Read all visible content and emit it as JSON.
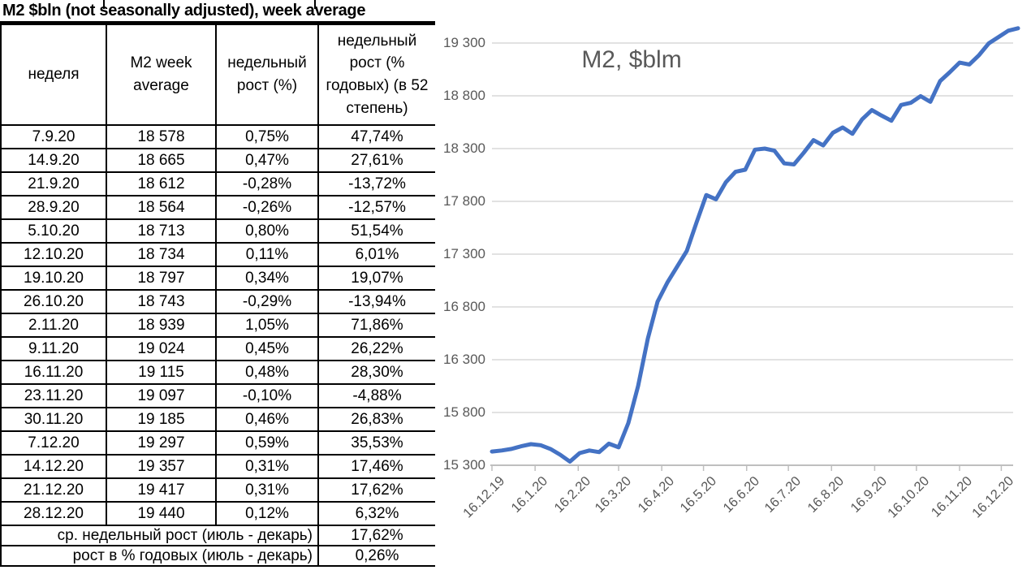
{
  "table": {
    "title": "M2 $bln (not seasonally adjusted), week average",
    "columns": [
      "неделя",
      "M2 week average",
      "недельный рост (%)",
      "недельный рост (% годовых) (в 52 степень)"
    ],
    "rows": [
      [
        "7.9.20",
        "18 578",
        "0,75%",
        "47,74%"
      ],
      [
        "14.9.20",
        "18 665",
        "0,47%",
        "27,61%"
      ],
      [
        "21.9.20",
        "18 612",
        "-0,28%",
        "-13,72%"
      ],
      [
        "28.9.20",
        "18 564",
        "-0,26%",
        "-12,57%"
      ],
      [
        "5.10.20",
        "18 713",
        "0,80%",
        "51,54%"
      ],
      [
        "12.10.20",
        "18 734",
        "0,11%",
        "6,01%"
      ],
      [
        "19.10.20",
        "18 797",
        "0,34%",
        "19,07%"
      ],
      [
        "26.10.20",
        "18 743",
        "-0,29%",
        "-13,94%"
      ],
      [
        "2.11.20",
        "18 939",
        "1,05%",
        "71,86%"
      ],
      [
        "9.11.20",
        "19 024",
        "0,45%",
        "26,22%"
      ],
      [
        "16.11.20",
        "19 115",
        "0,48%",
        "28,30%"
      ],
      [
        "23.11.20",
        "19 097",
        "-0,10%",
        "-4,88%"
      ],
      [
        "30.11.20",
        "19 185",
        "0,46%",
        "26,83%"
      ],
      [
        "7.12.20",
        "19 297",
        "0,59%",
        "35,53%"
      ],
      [
        "14.12.20",
        "19 357",
        "0,31%",
        "17,46%"
      ],
      [
        "21.12.20",
        "19 417",
        "0,31%",
        "17,62%"
      ],
      [
        "28.12.20",
        "19 440",
        "0,12%",
        "6,32%"
      ]
    ],
    "summary_rows": [
      {
        "label": "ср. недельный рост (июль - декарь)",
        "value": "17,62%"
      },
      {
        "label": "рост в % годовых (июль - декарь)",
        "value": "0,26%"
      }
    ]
  },
  "chart": {
    "title": "M2, $blm",
    "line_color": "#4472C4",
    "gridline_color": "#D9D9D9",
    "axis_color": "#BFBFBF",
    "label_color": "#595959",
    "y_tick_labels": [
      "15 300",
      "15 800",
      "16 300",
      "16 800",
      "17 300",
      "17 800",
      "18 300",
      "18 800",
      "19 300"
    ],
    "x_tick_labels": [
      "16.12.19",
      "16.1.20",
      "16.2.20",
      "16.3.20",
      "16.4.20",
      "16.5.20",
      "16.6.20",
      "16.7.20",
      "16.8.20",
      "16.9.20",
      "16.10.20",
      "16.11.20",
      "16.12.20"
    ]
  },
  "chart_data": {
    "type": "line",
    "title": "M2, $blm",
    "x": [
      "16.12.19",
      "23.12.19",
      "30.12.19",
      "6.1.20",
      "13.1.20",
      "20.1.20",
      "27.1.20",
      "3.2.20",
      "10.2.20",
      "17.2.20",
      "24.2.20",
      "2.3.20",
      "9.3.20",
      "16.3.20",
      "23.3.20",
      "30.3.20",
      "6.4.20",
      "13.4.20",
      "20.4.20",
      "27.4.20",
      "4.5.20",
      "11.5.20",
      "18.5.20",
      "25.5.20",
      "1.6.20",
      "8.6.20",
      "15.6.20",
      "22.6.20",
      "29.6.20",
      "6.7.20",
      "13.7.20",
      "20.7.20",
      "27.7.20",
      "3.8.20",
      "10.8.20",
      "17.8.20",
      "24.8.20",
      "31.8.20",
      "7.9.20",
      "14.9.20",
      "21.9.20",
      "28.9.20",
      "5.10.20",
      "12.10.20",
      "19.10.20",
      "26.10.20",
      "2.11.20",
      "9.11.20",
      "16.11.20",
      "23.11.20",
      "30.11.20",
      "7.12.20",
      "14.12.20",
      "21.12.20",
      "28.12.20"
    ],
    "values": [
      15430,
      15440,
      15455,
      15480,
      15500,
      15490,
      15455,
      15400,
      15335,
      15415,
      15440,
      15425,
      15505,
      15470,
      15700,
      16050,
      16500,
      16850,
      17030,
      17180,
      17330,
      17600,
      17860,
      17820,
      17980,
      18080,
      18100,
      18290,
      18300,
      18280,
      18160,
      18150,
      18260,
      18380,
      18330,
      18450,
      18500,
      18440,
      18578,
      18665,
      18612,
      18564,
      18713,
      18734,
      18797,
      18743,
      18939,
      19024,
      19115,
      19097,
      19185,
      19297,
      19357,
      19417,
      19440
    ],
    "xlabel": "",
    "ylabel": "",
    "ylim": [
      15300,
      19560
    ],
    "y_tick_step": 500,
    "x_axis_tick_labels": [
      "16.12.19",
      "16.1.20",
      "16.2.20",
      "16.3.20",
      "16.4.20",
      "16.5.20",
      "16.6.20",
      "16.7.20",
      "16.8.20",
      "16.9.20",
      "16.10.20",
      "16.11.20",
      "16.12.20"
    ],
    "grid": true,
    "legend": false
  }
}
